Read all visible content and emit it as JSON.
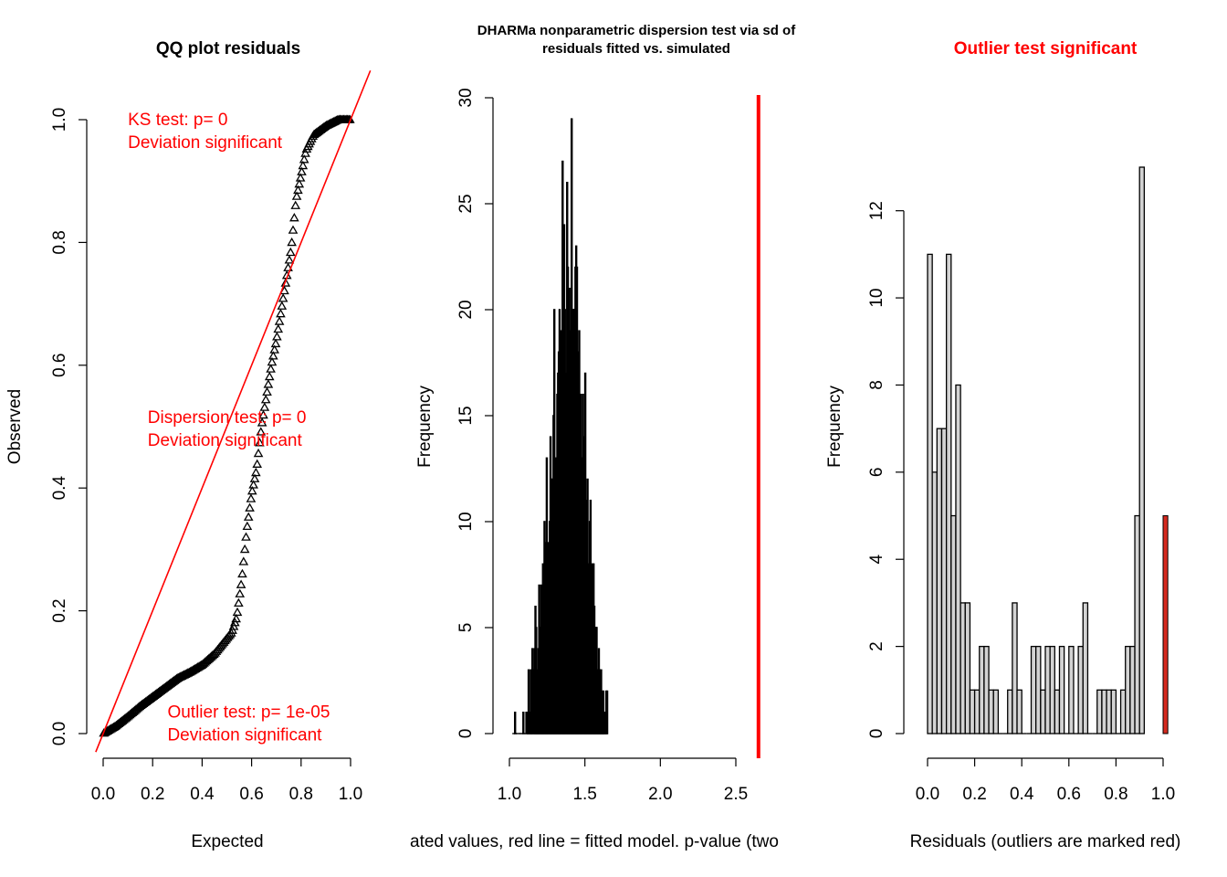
{
  "chart_data": [
    {
      "type": "scatter",
      "title": "QQ plot residuals",
      "xlabel": "Expected",
      "ylabel": "Observed",
      "xlim": [
        0,
        1
      ],
      "ylim": [
        0,
        1
      ],
      "x_ticks": [
        "0.0",
        "0.2",
        "0.4",
        "0.6",
        "0.8",
        "1.0"
      ],
      "y_ticks": [
        "0.0",
        "0.2",
        "0.4",
        "0.6",
        "0.8",
        "1.0"
      ],
      "reference_line": {
        "slope": 1,
        "intercept": 0,
        "color": "#ff0000"
      },
      "marker": "open-triangle",
      "quantile_profile": {
        "x": [
          0.0,
          0.05,
          0.1,
          0.15,
          0.2,
          0.25,
          0.3,
          0.35,
          0.4,
          0.45,
          0.5,
          0.52,
          0.54,
          0.56,
          0.58,
          0.6,
          0.62,
          0.64,
          0.66,
          0.68,
          0.7,
          0.72,
          0.74,
          0.76,
          0.78,
          0.8,
          0.82,
          0.85,
          0.9,
          0.95,
          1.0
        ],
        "y": [
          0.0,
          0.012,
          0.028,
          0.045,
          0.06,
          0.075,
          0.09,
          0.1,
          0.112,
          0.13,
          0.155,
          0.165,
          0.19,
          0.25,
          0.33,
          0.39,
          0.43,
          0.5,
          0.55,
          0.6,
          0.64,
          0.69,
          0.74,
          0.79,
          0.87,
          0.91,
          0.95,
          0.975,
          0.99,
          1.0,
          1.0
        ]
      },
      "point_count": 200,
      "annotations": [
        {
          "lines": [
            "KS test: p= 0",
            "Deviation  significant"
          ],
          "x": 0.1,
          "y": 1.0,
          "color": "#ff0000"
        },
        {
          "lines": [
            "Dispersion test: p= 0",
            "Deviation  significant"
          ],
          "x": 0.18,
          "y": 0.515,
          "color": "#ff0000"
        },
        {
          "lines": [
            "Outlier test: p= 1e-05",
            "Deviation  significant"
          ],
          "x": 0.26,
          "y": 0.035,
          "color": "#ff0000"
        }
      ]
    },
    {
      "type": "bar",
      "title_lines": [
        "DHARMa nonparametric dispersion test via sd of",
        "residuals fitted vs. simulated"
      ],
      "xlabel": "ated values, red line = fitted model. p-value (two",
      "ylabel": "Frequency",
      "xlim": [
        1.0,
        2.5
      ],
      "ylim": [
        0,
        30
      ],
      "x_ticks": [
        "1.0",
        "1.5",
        "2.0",
        "2.5"
      ],
      "y_ticks": [
        "0",
        "5",
        "10",
        "15",
        "20",
        "25",
        "30"
      ],
      "bin_width": 0.005,
      "bin_start": 1.02,
      "values": [
        0,
        0,
        0,
        1,
        0,
        0,
        0,
        0,
        0,
        0,
        0,
        0,
        0,
        0,
        1,
        0,
        0,
        0,
        1,
        0,
        1,
        3,
        0,
        1,
        3,
        1,
        4,
        0,
        3,
        4,
        6,
        5,
        3,
        2,
        4,
        7,
        5,
        5,
        7,
        6,
        8,
        6,
        10,
        9,
        9,
        13,
        9,
        6,
        9,
        10,
        14,
        12,
        12,
        9,
        15,
        20,
        11,
        13,
        12,
        16,
        17,
        18,
        20,
        18,
        19,
        16,
        27,
        16,
        24,
        20,
        17,
        15,
        26,
        22,
        20,
        21,
        19,
        17,
        29,
        17,
        20,
        20,
        20,
        22,
        23,
        22,
        18,
        14,
        19,
        15,
        16,
        13,
        13,
        16,
        14,
        12,
        17,
        11,
        9,
        12,
        6,
        8,
        10,
        11,
        7,
        8,
        6,
        8,
        6,
        4,
        5,
        5,
        3,
        3,
        4,
        3,
        2,
        3,
        2,
        1,
        2,
        1,
        1,
        0,
        2,
        2
      ],
      "fitted_value": 2.65,
      "fitted_line_color": "#ff0000"
    },
    {
      "type": "bar",
      "title": "Outlier test significant",
      "title_color": "#ff0000",
      "xlabel": "Residuals (outliers are marked red)",
      "ylabel": "Frequency",
      "xlim": [
        0,
        1
      ],
      "ylim": [
        0,
        13
      ],
      "x_ticks": [
        "0.0",
        "0.2",
        "0.4",
        "0.6",
        "0.8",
        "1.0"
      ],
      "y_ticks": [
        "0",
        "2",
        "4",
        "6",
        "8",
        "10",
        "12"
      ],
      "bin_width": 0.02,
      "values": [
        11,
        6,
        7,
        7,
        11,
        5,
        8,
        3,
        3,
        1,
        1,
        2,
        2,
        1,
        1,
        0,
        0,
        1,
        3,
        1,
        0,
        0,
        2,
        2,
        1,
        2,
        2,
        1,
        2,
        0,
        2,
        0,
        2,
        3,
        0,
        0,
        1,
        1,
        1,
        1,
        0,
        1,
        2,
        2,
        5,
        13
      ],
      "outlier_bins": [
        {
          "x0": 1.0,
          "x1": 1.02,
          "value": 5,
          "color": "#d42a1f"
        }
      ],
      "bar_fill": "#d3d3d3"
    }
  ]
}
